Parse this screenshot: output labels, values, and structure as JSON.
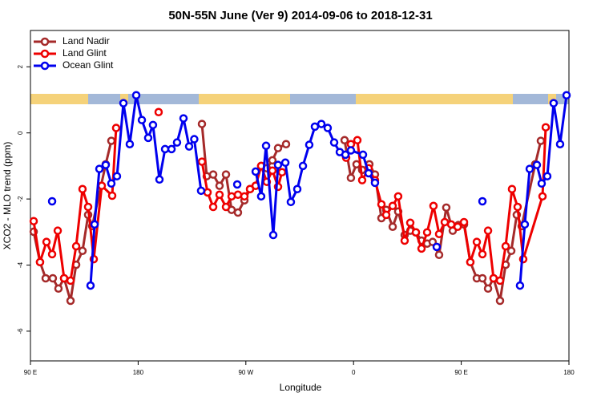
{
  "chart_data": {
    "type": "line",
    "title": "50N-55N June (Ver 9)   2014-09-06 to 2018-12-31",
    "x_label": "Longitude",
    "y_label": "XCO2 - MLO trend (ppm)",
    "xlim": [
      90,
      540
    ],
    "xticks": [
      {
        "value": 90,
        "label": "90 E"
      },
      {
        "value": 180,
        "label": "180"
      },
      {
        "value": 270,
        "label": "90 W"
      },
      {
        "value": 360,
        "label": "0"
      },
      {
        "value": 450,
        "label": "90 E"
      },
      {
        "value": 540,
        "label": "180"
      }
    ],
    "ylim": [
      -6.9,
      3.1
    ],
    "yticks": [
      -6,
      -4,
      -2,
      0,
      2
    ],
    "grid": false,
    "legend": "top-left",
    "series": [
      {
        "name": "Land Nadir",
        "color": "#a52a2a",
        "x": [
          92.7,
          98.0,
          102.7,
          108.7,
          113.4,
          118.1,
          123.5,
          128.2,
          133.5,
          138.2,
          141.6,
          152.9,
          157.6,
          null,
          233.3,
          237.3,
          242.7,
          248.0,
          253.4,
          258.1,
          263.4,
          268.8,
          273.5,
          278.2,
          282.8,
          287.5,
          292.2,
          296.9,
          303.6,
          null,
          352.5,
          357.8,
          362.5,
          367.2,
          373.2,
          377.9,
          383.3,
          387.3,
          392.7,
          397.3,
          402.7,
          407.4,
          412.1,
          416.8,
          421.5,
          426.1,
          431.5,
          437.5,
          442.9,
          447.6,
          452.3,
          457.6,
          463.0,
          467.7,
          472.4,
          477.0,
          482.4,
          487.1,
          491.8,
          496.4,
          500.5,
          511.8,
          516.5
        ],
        "values": [
          -2.99,
          -3.91,
          -4.4,
          -4.4,
          -4.71,
          -4.4,
          -5.08,
          -3.99,
          -3.57,
          -2.48,
          -2.82,
          -0.95,
          -0.24,
          null,
          0.27,
          -1.31,
          -1.26,
          -1.6,
          -1.26,
          -2.33,
          -2.41,
          -2.04,
          -1.7,
          -1.6,
          -1.0,
          -1.07,
          -0.83,
          -0.46,
          -0.34,
          null,
          -0.22,
          -1.36,
          -0.95,
          -1.12,
          -0.95,
          -1.26,
          -2.58,
          -2.33,
          -2.84,
          -2.38,
          -3.09,
          -2.96,
          -3.01,
          -3.26,
          -3.35,
          -3.3,
          -3.69,
          -2.26,
          -2.96,
          -2.79,
          -2.77,
          -3.91,
          -4.4,
          -4.4,
          -4.71,
          -4.4,
          -5.08,
          -3.99,
          -3.57,
          -2.48,
          -2.82,
          -0.95,
          -0.24
        ]
      },
      {
        "name": "Land Glint",
        "color": "#ee0000",
        "x": [
          92.7,
          98.0,
          103.4,
          108.1,
          112.8,
          118.1,
          123.5,
          128.2,
          133.5,
          138.2,
          142.9,
          149.6,
          158.3,
          161.6,
          null,
          197.1,
          null,
          233.3,
          238.0,
          242.7,
          248.0,
          253.4,
          258.1,
          263.4,
          268.8,
          273.5,
          278.2,
          282.8,
          287.5,
          292.2,
          296.9,
          300.2,
          null,
          353.8,
          357.8,
          363.2,
          367.2,
          372.6,
          377.9,
          383.3,
          387.3,
          392.7,
          397.3,
          402.7,
          407.4,
          412.1,
          416.8,
          421.5,
          426.8,
          431.5,
          436.2,
          441.6,
          447.0,
          452.3,
          457.6,
          463.0,
          467.7,
          472.4,
          477.0,
          482.4,
          487.1,
          492.4,
          497.1,
          501.8,
          517.9,
          520.6
        ],
        "values": [
          -2.67,
          -3.91,
          -3.3,
          -3.67,
          -2.96,
          -4.4,
          -4.47,
          -3.43,
          -1.7,
          -2.24,
          -3.82,
          -1.6,
          -1.9,
          0.15,
          null,
          0.63,
          null,
          -0.87,
          -1.8,
          -2.24,
          -1.87,
          -2.24,
          -1.92,
          -1.87,
          -1.92,
          -1.7,
          -1.6,
          -1.0,
          -1.48,
          -1.14,
          -1.63,
          -1.19,
          null,
          -0.75,
          -0.34,
          -0.22,
          -1.43,
          -1.07,
          -1.43,
          -2.16,
          -2.48,
          -2.21,
          -1.92,
          -3.26,
          -2.72,
          -3.01,
          -3.5,
          -3.01,
          -2.21,
          -3.06,
          -2.7,
          -2.77,
          -2.84,
          -2.7,
          -3.91,
          -3.3,
          -3.67,
          -2.96,
          -4.4,
          -4.47,
          -3.43,
          -1.7,
          -2.24,
          -3.82,
          -1.92,
          0.17
        ]
      },
      {
        "name": "Ocean Glint",
        "color": "#0000ee",
        "x": [
          108.1,
          null,
          140.2,
          143.6,
          147.6,
          152.9,
          157.6,
          162.3,
          167.7,
          173.0,
          178.4,
          183.1,
          188.4,
          192.4,
          197.8,
          202.5,
          207.9,
          212.5,
          217.9,
          222.6,
          226.9,
          232.6,
          null,
          262.8,
          null,
          278.2,
          282.8,
          286.9,
          292.9,
          296.9,
          303.0,
          307.6,
          313.0,
          317.7,
          323.0,
          327.7,
          333.1,
          338.4,
          343.8,
          348.5,
          353.2,
          357.8,
          367.9,
          372.6,
          377.9,
          null,
          429.5,
          null,
          467.7,
          null,
          499.1,
          503.1,
          507.2,
          513.2,
          517.2,
          521.9,
          527.2,
          532.6,
          538.0
        ],
        "values": [
          -2.07,
          null,
          -4.62,
          -2.77,
          -1.09,
          -0.97,
          -1.53,
          -1.31,
          0.9,
          -0.34,
          1.14,
          0.39,
          -0.15,
          0.24,
          -1.41,
          -0.49,
          -0.49,
          -0.29,
          0.44,
          -0.41,
          -0.19,
          -1.75,
          null,
          -1.56,
          null,
          -1.17,
          -1.92,
          -0.39,
          -3.09,
          -0.97,
          -0.9,
          -2.09,
          -1.7,
          -1.0,
          -0.36,
          0.19,
          0.27,
          0.15,
          -0.29,
          -0.58,
          -0.66,
          -0.53,
          -0.66,
          -1.22,
          -1.51,
          null,
          -3.45,
          null,
          -2.07,
          null,
          -4.62,
          -2.77,
          -1.09,
          -0.97,
          -1.53,
          -1.31,
          0.9,
          -0.34,
          1.14
        ]
      }
    ]
  }
}
